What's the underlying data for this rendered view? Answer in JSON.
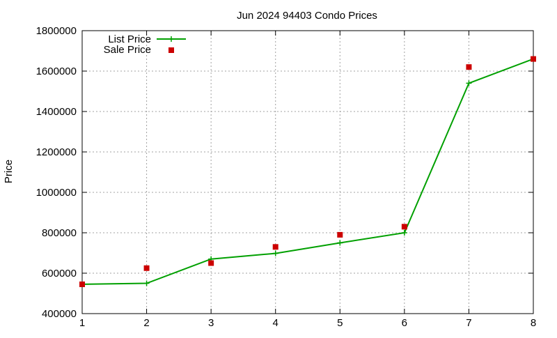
{
  "chart_data": {
    "type": "line",
    "title": "Jun 2024 94403 Condo Prices",
    "xlabel": "",
    "ylabel": "Price",
    "xlim": [
      1,
      8
    ],
    "ylim": [
      400000,
      1800000
    ],
    "x_ticks": [
      1,
      2,
      3,
      4,
      5,
      6,
      7,
      8
    ],
    "y_ticks": [
      400000,
      600000,
      800000,
      1000000,
      1200000,
      1400000,
      1600000,
      1800000
    ],
    "grid": true,
    "legend_position": "top-left",
    "series": [
      {
        "name": "List Price",
        "style": "line-with-plus-markers",
        "color": "#00a000",
        "x": [
          1,
          2,
          3,
          4,
          5,
          6,
          7,
          8
        ],
        "values": [
          545000,
          550000,
          670000,
          698000,
          750000,
          800000,
          1540000,
          1660000
        ]
      },
      {
        "name": "Sale Price",
        "style": "square-points",
        "color": "#cc0000",
        "x": [
          1,
          2,
          3,
          4,
          5,
          6,
          7,
          8
        ],
        "values": [
          545000,
          625000,
          650000,
          730000,
          790000,
          830000,
          1620000,
          1660000
        ]
      }
    ]
  }
}
